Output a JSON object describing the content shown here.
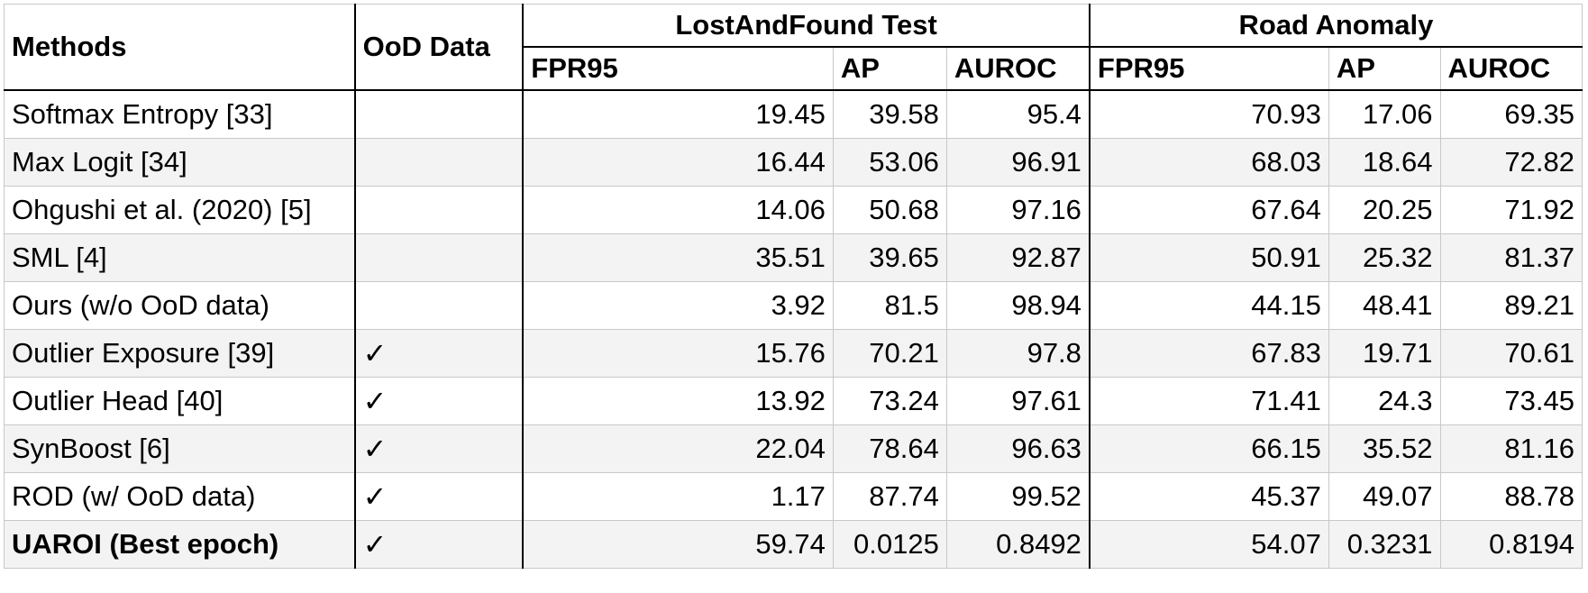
{
  "headers": {
    "methods": "Methods",
    "ood": "OoD Data",
    "group1": "LostAndFound Test",
    "group2": "Road Anomaly",
    "fpr95": "FPR95",
    "ap": "AP",
    "auroc": "AUROC"
  },
  "check_mark": "✓",
  "rows": [
    {
      "name": "Softmax Entropy [33]",
      "ood": "",
      "lf_fpr": "19.45",
      "lf_ap": "39.58",
      "lf_auroc": "95.4",
      "ra_fpr": "70.93",
      "ra_ap": "17.06",
      "ra_auroc": "69.35"
    },
    {
      "name": "Max Logit [34]",
      "ood": "",
      "lf_fpr": "16.44",
      "lf_ap": "53.06",
      "lf_auroc": "96.91",
      "ra_fpr": "68.03",
      "ra_ap": "18.64",
      "ra_auroc": "72.82"
    },
    {
      "name": "Ohgushi et al. (2020) [5]",
      "ood": "",
      "lf_fpr": "14.06",
      "lf_ap": "50.68",
      "lf_auroc": "97.16",
      "ra_fpr": "67.64",
      "ra_ap": "20.25",
      "ra_auroc": "71.92"
    },
    {
      "name": "SML [4]",
      "ood": "",
      "lf_fpr": "35.51",
      "lf_ap": "39.65",
      "lf_auroc": "92.87",
      "ra_fpr": "50.91",
      "ra_ap": "25.32",
      "ra_auroc": "81.37"
    },
    {
      "name": "Ours (w/o OoD data)",
      "ood": "",
      "lf_fpr": "3.92",
      "lf_ap": "81.5",
      "lf_auroc": "98.94",
      "ra_fpr": "44.15",
      "ra_ap": "48.41",
      "ra_auroc": "89.21"
    },
    {
      "name": "Outlier Exposure [39]",
      "ood": "✓",
      "lf_fpr": "15.76",
      "lf_ap": "70.21",
      "lf_auroc": "97.8",
      "ra_fpr": "67.83",
      "ra_ap": "19.71",
      "ra_auroc": "70.61"
    },
    {
      "name": "Outlier Head [40]",
      "ood": "✓",
      "lf_fpr": "13.92",
      "lf_ap": "73.24",
      "lf_auroc": "97.61",
      "ra_fpr": "71.41",
      "ra_ap": "24.3",
      "ra_auroc": "73.45"
    },
    {
      "name": "SynBoost [6]",
      "ood": "✓",
      "lf_fpr": "22.04",
      "lf_ap": "78.64",
      "lf_auroc": "96.63",
      "ra_fpr": "66.15",
      "ra_ap": "35.52",
      "ra_auroc": "81.16"
    },
    {
      "name": "ROD (w/ OoD data)",
      "ood": "✓",
      "lf_fpr": "1.17",
      "lf_ap": "87.74",
      "lf_auroc": "99.52",
      "ra_fpr": "45.37",
      "ra_ap": "49.07",
      "ra_auroc": "88.78"
    },
    {
      "name": "UAROI (Best epoch)",
      "ood": "✓",
      "bold": true,
      "lf_fpr": "59.74",
      "lf_ap": "0.0125",
      "lf_auroc": "0.8492",
      "ra_fpr": "54.07",
      "ra_ap": "0.3231",
      "ra_auroc": "0.8194"
    }
  ]
}
